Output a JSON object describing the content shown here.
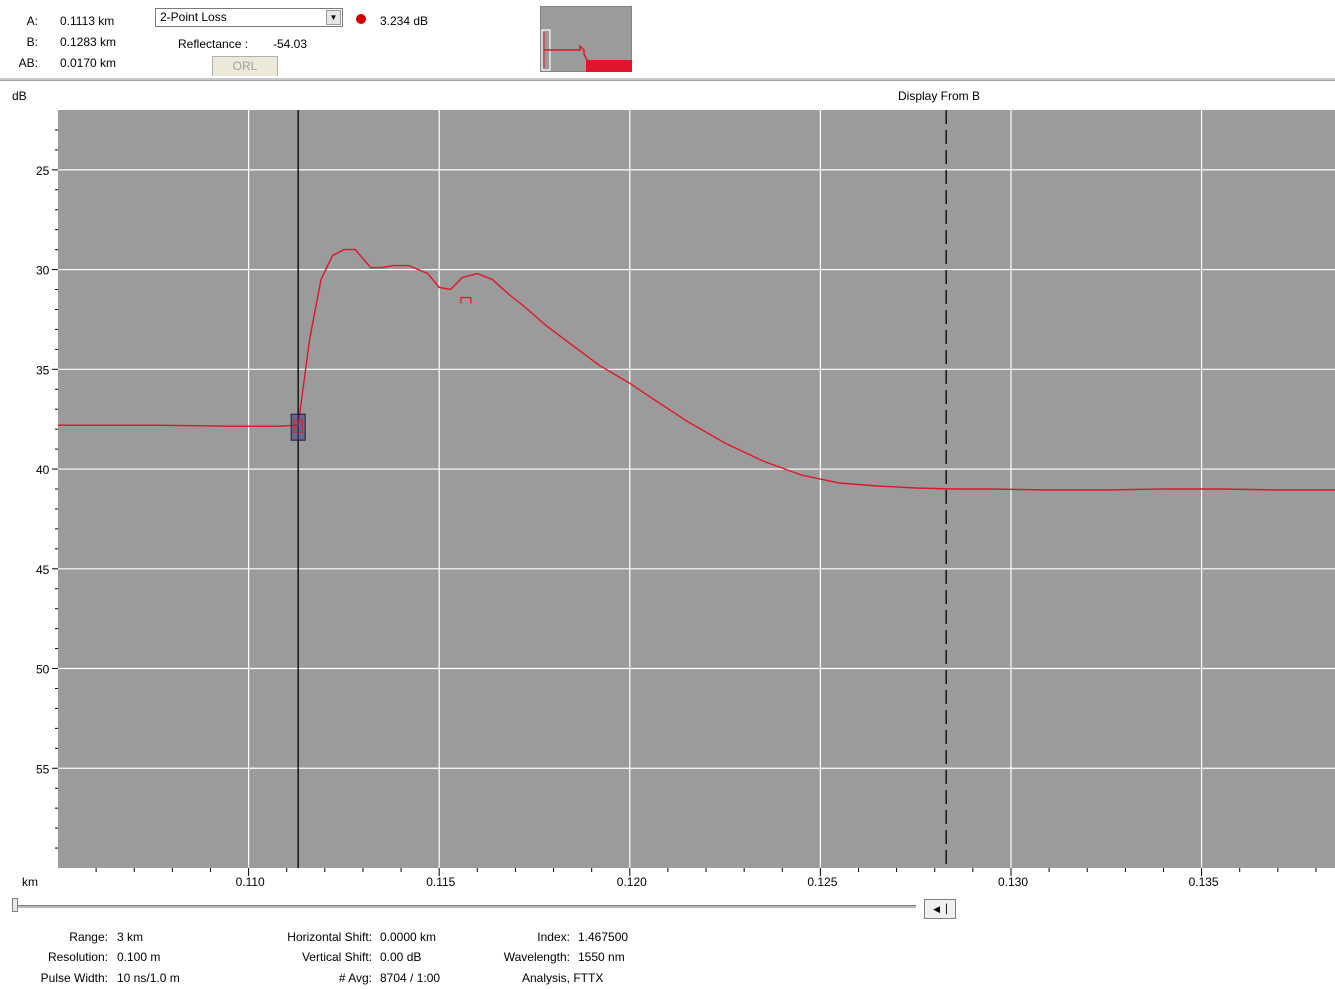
{
  "cursors": {
    "a_label": "A:",
    "a_value": "0.1113 km",
    "b_label": "B:",
    "b_value": "0.1283 km",
    "ab_label": "AB:",
    "ab_value": "0.0170 km"
  },
  "measurement": {
    "mode_selected": "2-Point Loss",
    "loss_value": "3.234 dB",
    "reflectance_label": "Reflectance :",
    "reflectance_value": "-54.03",
    "orl_button": "ORL"
  },
  "plot": {
    "y_unit": "dB",
    "x_unit": "km",
    "display_from": "Display From B",
    "trace_color": "#e0142a",
    "background_color": "#9b9b9b"
  },
  "chart_data": {
    "type": "line",
    "xlabel": "km",
    "ylabel": "dB",
    "xlim": [
      0.105,
      0.1385
    ],
    "ylim": [
      60,
      22
    ],
    "x_ticks": [
      "0.110",
      "0.115",
      "0.120",
      "0.125",
      "0.130",
      "0.135"
    ],
    "y_ticks": [
      "25",
      "30",
      "35",
      "40",
      "45",
      "50",
      "55"
    ],
    "grid": true,
    "cursor_a_km": 0.1113,
    "cursor_b_km": 0.1283,
    "series": [
      {
        "x": [
          0.105,
          0.1075,
          0.1095,
          0.1108,
          0.1113,
          0.1116,
          0.1119,
          0.1122,
          0.1125,
          0.1128,
          0.1132,
          0.1135,
          0.1138,
          0.1142,
          0.1147,
          0.115,
          0.1153,
          0.1156,
          0.116,
          0.1164,
          0.1168,
          0.1172,
          0.1178,
          0.1185,
          0.1192,
          0.12,
          0.1207,
          0.1215,
          0.1225,
          0.1235,
          0.1245,
          0.1255,
          0.1265,
          0.1275,
          0.1285,
          0.1295,
          0.131,
          0.1325,
          0.134,
          0.1355,
          0.137,
          0.1385
        ],
        "y": [
          37.8,
          37.8,
          37.85,
          37.85,
          37.8,
          33.5,
          30.5,
          29.3,
          29.0,
          29.0,
          29.9,
          29.9,
          29.8,
          29.8,
          30.2,
          30.9,
          31.0,
          30.4,
          30.2,
          30.5,
          31.2,
          31.8,
          32.8,
          33.8,
          34.8,
          35.7,
          36.6,
          37.6,
          38.7,
          39.6,
          40.3,
          40.7,
          40.85,
          40.95,
          41.0,
          41.0,
          41.05,
          41.05,
          41.0,
          41.0,
          41.05,
          41.05
        ]
      }
    ]
  },
  "status": {
    "range_label": "Range:",
    "range_value": "3 km",
    "resolution_label": "Resolution:",
    "resolution_value": "0.100 m",
    "pulse_label": "Pulse Width:",
    "pulse_value": "10 ns/1.0 m",
    "hshift_label": "Horizontal Shift:",
    "hshift_value": "0.0000 km",
    "vshift_label": "Vertical Shift:",
    "vshift_value": "0.00 dB",
    "avg_label": "# Avg:",
    "avg_value": "8704 / 1:00",
    "index_label": "Index:",
    "index_value": "1.467500",
    "wavelength_label": "Wavelength:",
    "wavelength_value": "1550 nm",
    "analysis_text": "Analysis, FTTX"
  }
}
